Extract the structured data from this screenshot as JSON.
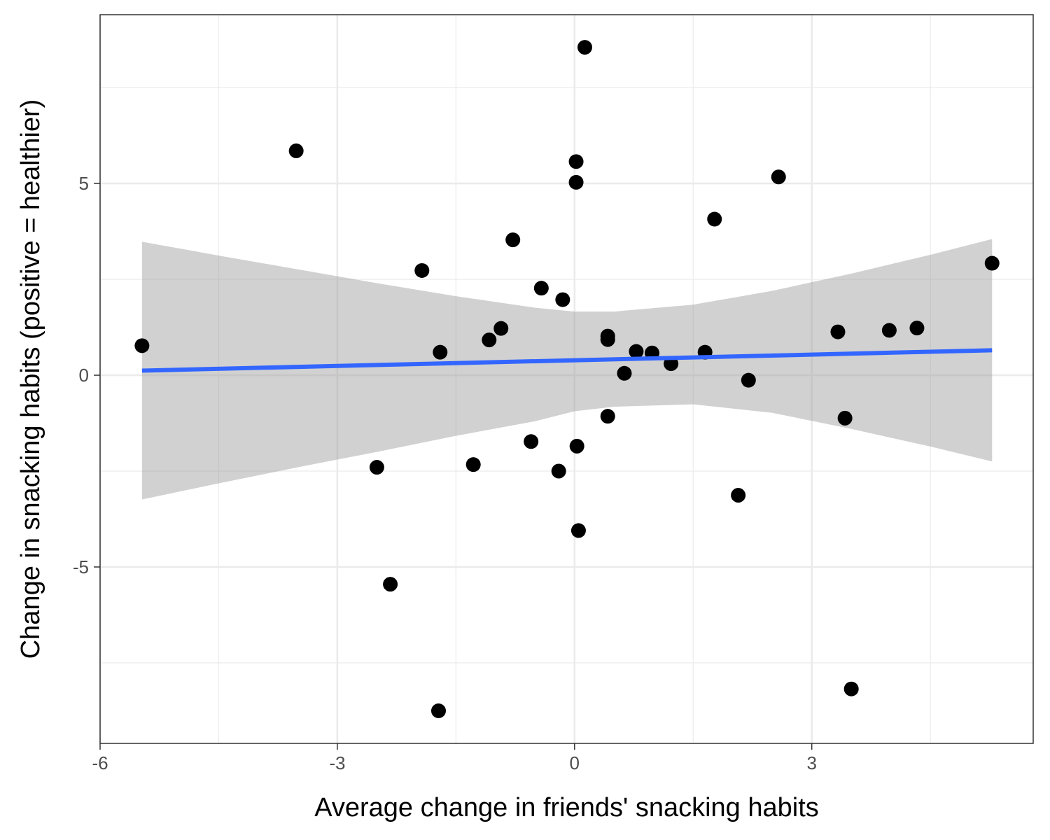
{
  "chart_data": {
    "type": "scatter",
    "title": "",
    "xlabel": "Average change in friends' snacking habits",
    "ylabel": "Change in snacking habits (positive = healthier)",
    "xlim": [
      -6,
      5.8
    ],
    "ylim": [
      -9.6,
      9.4
    ],
    "x_ticks": [
      -6,
      -3,
      0,
      3
    ],
    "y_ticks": [
      -5,
      0,
      5
    ],
    "x_tick_labels": [
      "-6",
      "-3",
      "0",
      "3"
    ],
    "y_tick_labels": [
      "-5",
      "0",
      "5"
    ],
    "grid": true,
    "points": [
      {
        "x": -5.47,
        "y": 0.77
      },
      {
        "x": -3.52,
        "y": 5.85
      },
      {
        "x": -2.5,
        "y": -2.4
      },
      {
        "x": -2.33,
        "y": -5.45
      },
      {
        "x": -1.93,
        "y": 2.73
      },
      {
        "x": -1.72,
        "y": -8.75
      },
      {
        "x": -1.7,
        "y": 0.6
      },
      {
        "x": -1.28,
        "y": -2.33
      },
      {
        "x": -1.08,
        "y": 0.92
      },
      {
        "x": -0.93,
        "y": 1.22
      },
      {
        "x": -0.78,
        "y": 3.53
      },
      {
        "x": -0.55,
        "y": -1.73
      },
      {
        "x": -0.42,
        "y": 2.27
      },
      {
        "x": -0.2,
        "y": -2.5
      },
      {
        "x": -0.15,
        "y": 1.97
      },
      {
        "x": 0.02,
        "y": 5.57
      },
      {
        "x": 0.02,
        "y": 5.03
      },
      {
        "x": 0.03,
        "y": -1.85
      },
      {
        "x": 0.05,
        "y": -4.05
      },
      {
        "x": 0.13,
        "y": 8.55
      },
      {
        "x": 0.42,
        "y": 1.02
      },
      {
        "x": 0.42,
        "y": 0.93
      },
      {
        "x": 0.42,
        "y": -1.07
      },
      {
        "x": 0.63,
        "y": 0.05
      },
      {
        "x": 0.78,
        "y": 0.62
      },
      {
        "x": 0.98,
        "y": 0.58
      },
      {
        "x": 1.22,
        "y": 0.3
      },
      {
        "x": 1.65,
        "y": 0.6
      },
      {
        "x": 1.77,
        "y": 4.07
      },
      {
        "x": 2.07,
        "y": -3.13
      },
      {
        "x": 2.2,
        "y": -0.13
      },
      {
        "x": 2.58,
        "y": 5.17
      },
      {
        "x": 3.33,
        "y": 1.13
      },
      {
        "x": 3.42,
        "y": -1.12
      },
      {
        "x": 3.5,
        "y": -8.18
      },
      {
        "x": 3.98,
        "y": 1.17
      },
      {
        "x": 4.33,
        "y": 1.23
      },
      {
        "x": 5.28,
        "y": 2.92
      }
    ],
    "fit_line": {
      "x": [
        -5.47,
        5.28
      ],
      "y": [
        0.12,
        0.65
      ],
      "color": "#3366FF"
    },
    "confidence_band": {
      "x": [
        -5.47,
        -4.5,
        -3.5,
        -2.5,
        -1.5,
        -0.5,
        0.0,
        0.5,
        1.5,
        2.5,
        3.5,
        4.5,
        5.28
      ],
      "upper": [
        3.48,
        3.12,
        2.76,
        2.4,
        2.06,
        1.76,
        1.66,
        1.66,
        1.84,
        2.2,
        2.65,
        3.14,
        3.55
      ],
      "lower": [
        -3.24,
        -2.82,
        -2.4,
        -2.0,
        -1.58,
        -1.2,
        -0.94,
        -0.82,
        -0.76,
        -0.98,
        -1.4,
        -1.86,
        -2.25
      ]
    },
    "colors": {
      "points": "#000000",
      "band": "#999999",
      "grid": "#ebebeb",
      "panel_border": "#333333",
      "background": "#ffffff"
    }
  }
}
